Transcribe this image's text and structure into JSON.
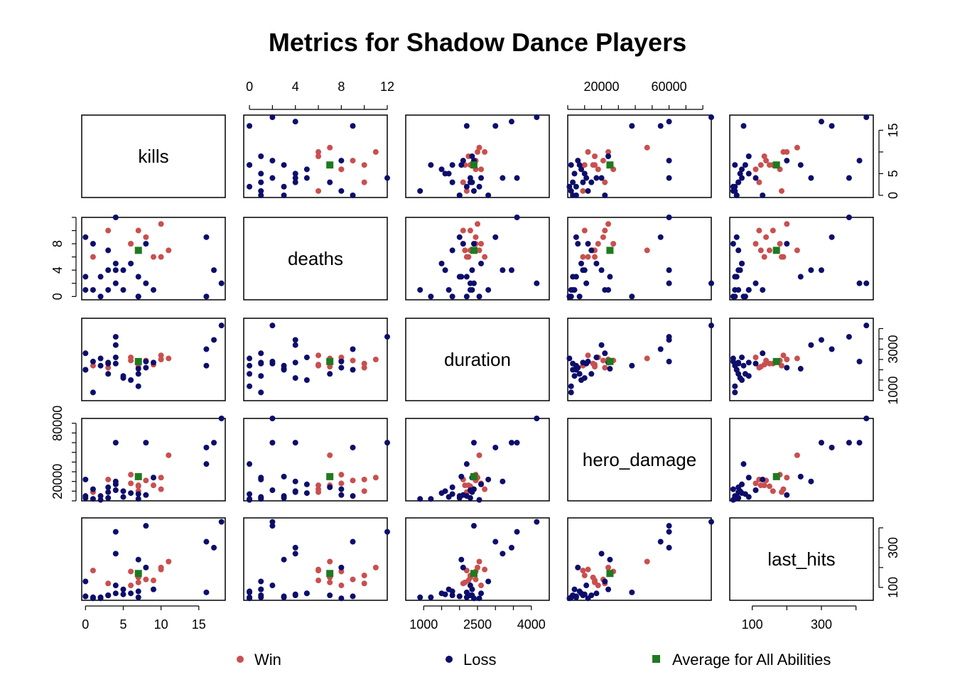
{
  "chart_data": {
    "type": "scatter",
    "title": "Metrics for Shadow Dance Players",
    "variables": [
      "kills",
      "deaths",
      "duration",
      "hero_damage",
      "last_hits"
    ],
    "ranges": {
      "kills": [
        -0.5,
        18.5
      ],
      "deaths": [
        -0.5,
        12
      ],
      "duration": [
        500,
        4500
      ],
      "hero_damage": [
        0,
        85000
      ],
      "last_hits": [
        35,
        450
      ]
    },
    "ticks": {
      "kills": [
        0,
        5,
        10,
        15
      ],
      "deaths": [
        0,
        4,
        8
      ],
      "duration": [
        1000,
        2500,
        4000
      ],
      "hero_damage": [
        20000,
        60000
      ],
      "last_hits": [
        100,
        300
      ]
    },
    "minor_ticks": {
      "kills": [
        0,
        5,
        10,
        15
      ],
      "deaths": [
        0,
        2,
        4,
        6,
        8,
        10,
        12
      ],
      "duration": [
        1000,
        1500,
        2000,
        2500,
        3000,
        3500,
        4000
      ],
      "hero_damage": [
        0,
        10000,
        20000,
        30000,
        40000,
        50000,
        60000,
        70000,
        80000
      ],
      "last_hits": [
        100,
        200,
        300,
        400
      ]
    },
    "tick_labels": {
      "top": {
        "deaths": [
          "0",
          "4",
          "8",
          "12"
        ],
        "hero_damage": [
          "20000",
          "60000"
        ]
      },
      "right": {
        "kills": [
          "0",
          "5",
          "15"
        ],
        "duration": [
          "1000",
          "3000"
        ],
        "last_hits": [
          "100",
          "300"
        ]
      },
      "bottom": {
        "kills": [
          "0",
          "5",
          "10",
          "15"
        ],
        "duration": [
          "1000",
          "2500",
          "4000"
        ],
        "last_hits": [
          "100",
          "300"
        ]
      },
      "left": {
        "deaths": [
          "0",
          "4",
          "8"
        ],
        "hero_damage": [
          "20000",
          "80000"
        ]
      }
    },
    "top_ticks": {
      "deaths": [
        0,
        4,
        8,
        12
      ],
      "hero_damage": [
        20000,
        60000
      ]
    },
    "left_ticks": {
      "deaths": [
        0,
        4,
        8
      ],
      "hero_damage": [
        20000,
        80000
      ]
    },
    "right_ticks": {
      "kills": [
        0,
        5,
        15
      ],
      "duration": [
        1000,
        3000
      ],
      "last_hits": [
        100,
        300
      ]
    },
    "bottom_ticks": {
      "kills": [
        0,
        5,
        10,
        15
      ],
      "duration": [
        1000,
        2500,
        4000
      ],
      "last_hits": [
        100,
        300
      ]
    },
    "series": [
      {
        "name": "Win",
        "color": "#c8504f",
        "marker": "circle",
        "points": [
          {
            "kills": 7,
            "deaths": 10,
            "duration": 2300,
            "hero_damage": 10000,
            "last_hits": 160
          },
          {
            "kills": 7,
            "deaths": 7,
            "duration": 2300,
            "hero_damage": 15000,
            "last_hits": 150
          },
          {
            "kills": 6,
            "deaths": 8,
            "duration": 2450,
            "hero_damage": 27000,
            "last_hits": 180
          },
          {
            "kills": 9,
            "deaths": 6,
            "duration": 2250,
            "hero_damage": 16000,
            "last_hits": 135
          },
          {
            "kills": 8,
            "deaths": 9,
            "duration": 2450,
            "hero_damage": 21000,
            "last_hits": 140
          },
          {
            "kills": 10,
            "deaths": 11,
            "duration": 2500,
            "hero_damage": 24000,
            "last_hits": 200
          },
          {
            "kills": 11,
            "deaths": 7,
            "duration": 2550,
            "hero_damage": 47000,
            "last_hits": 230
          },
          {
            "kills": 6,
            "deaths": 8,
            "duration": 2600,
            "hero_damage": 18000,
            "last_hits": 110
          },
          {
            "kills": 1,
            "deaths": 6,
            "duration": 2200,
            "hero_damage": 9000,
            "last_hits": 185
          },
          {
            "kills": 3,
            "deaths": 10,
            "duration": 2100,
            "hero_damage": 22000,
            "last_hits": 120
          },
          {
            "kills": 7,
            "deaths": 7,
            "duration": 2150,
            "hero_damage": 16000,
            "last_hits": 125
          },
          {
            "kills": 10,
            "deaths": 6,
            "duration": 2700,
            "hero_damage": 12000,
            "last_hits": 190
          }
        ]
      },
      {
        "name": "Loss",
        "color": "#0d0d6b",
        "marker": "circle",
        "points": [
          {
            "kills": 16,
            "deaths": 0,
            "duration": 2200,
            "hero_damage": 38000,
            "last_hits": 75
          },
          {
            "kills": 18,
            "deaths": 2,
            "duration": 4150,
            "hero_damage": 85000,
            "last_hits": 430
          },
          {
            "kills": 17,
            "deaths": 4,
            "duration": 3450,
            "hero_damage": 60000,
            "last_hits": 300
          },
          {
            "kills": 4,
            "deaths": 12,
            "duration": 3600,
            "hero_damage": 60000,
            "last_hits": 380
          },
          {
            "kills": 7,
            "deaths": 0,
            "duration": 1800,
            "hero_damage": 7000,
            "last_hits": 80
          },
          {
            "kills": 1,
            "deaths": 1,
            "duration": 900,
            "hero_damage": 2000,
            "last_hits": 50
          },
          {
            "kills": 0,
            "deaths": 9,
            "duration": 2000,
            "hero_damage": 5000,
            "last_hits": 55
          },
          {
            "kills": 3,
            "deaths": 7,
            "duration": 1800,
            "hero_damage": 14000,
            "last_hits": 60
          },
          {
            "kills": 4,
            "deaths": 5,
            "duration": 2600,
            "hero_damage": 17000,
            "last_hits": 70
          },
          {
            "kills": 5,
            "deaths": 4,
            "duration": 1600,
            "hero_damage": 10000,
            "last_hits": 65
          },
          {
            "kills": 3,
            "deaths": 4,
            "duration": 2350,
            "hero_damage": 9000,
            "last_hits": 60
          },
          {
            "kills": 2,
            "deaths": 3,
            "duration": 2200,
            "hero_damage": 5000,
            "last_hits": 50
          },
          {
            "kills": 0,
            "deaths": 3,
            "duration": 2000,
            "hero_damage": 3000,
            "last_hits": 55
          },
          {
            "kills": 1,
            "deaths": 8,
            "duration": 2400,
            "hero_damage": 12000,
            "last_hits": 45
          },
          {
            "kills": 8,
            "deaths": 8,
            "duration": 2100,
            "hero_damage": 6000,
            "last_hits": 200
          },
          {
            "kills": 5,
            "deaths": 1,
            "duration": 1700,
            "hero_damage": 4000,
            "last_hits": 90
          },
          {
            "kills": 4,
            "deaths": 2,
            "duration": 2300,
            "hero_damage": 11000,
            "last_hits": 110
          },
          {
            "kills": 9,
            "deaths": 1,
            "duration": 2350,
            "hero_damage": 24000,
            "last_hits": 90
          },
          {
            "kills": 4,
            "deaths": 4,
            "duration": 3200,
            "hero_damage": 20000,
            "last_hits": 270
          },
          {
            "kills": 7,
            "deaths": 3,
            "duration": 2050,
            "hero_damage": 25000,
            "last_hits": 240
          },
          {
            "kills": 6,
            "deaths": 5,
            "duration": 1500,
            "hero_damage": 8000,
            "last_hits": 70
          },
          {
            "kills": 16,
            "deaths": 9,
            "duration": 3000,
            "hero_damage": 55000,
            "last_hits": 330
          },
          {
            "kills": 3,
            "deaths": 1,
            "duration": 2300,
            "hero_damage": 3000,
            "last_hits": 60
          },
          {
            "kills": 2,
            "deaths": 0,
            "duration": 2550,
            "hero_damage": 1000,
            "last_hits": 45
          },
          {
            "kills": 8,
            "deaths": 2,
            "duration": 2400,
            "hero_damage": 60000,
            "last_hits": 410
          },
          {
            "kills": 0,
            "deaths": 1,
            "duration": 2800,
            "hero_damage": 22000,
            "last_hits": 130
          },
          {
            "kills": 7,
            "deaths": 0,
            "duration": 1200,
            "hero_damage": 2000,
            "last_hits": 50
          }
        ]
      },
      {
        "name": "Average for All Abilities",
        "color": "#1f7a1f",
        "marker": "square",
        "points": [
          {
            "kills": 7,
            "deaths": 7,
            "duration": 2400,
            "hero_damage": 25000,
            "last_hits": 170
          }
        ]
      }
    ],
    "legend": {
      "position": "bottom",
      "items": [
        {
          "label": "Win",
          "color": "#c8504f",
          "marker": "circle"
        },
        {
          "label": "Loss",
          "color": "#0d0d6b",
          "marker": "circle"
        },
        {
          "label": "Average for All Abilities",
          "color": "#1f7a1f",
          "marker": "square"
        }
      ]
    }
  }
}
